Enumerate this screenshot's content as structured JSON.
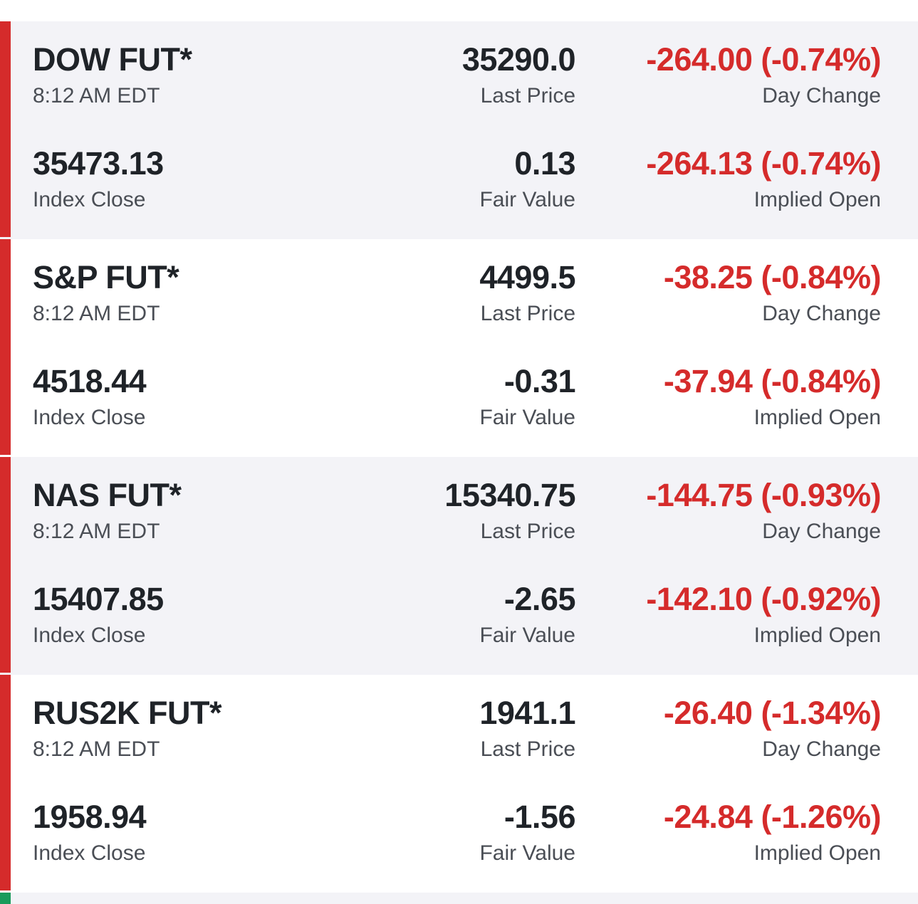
{
  "colors": {
    "negative": "#d52b2b",
    "positive_indicator": "#1a9b5b",
    "negative_indicator": "#d52b2b",
    "card_shade": "#f3f3f7"
  },
  "labels": {
    "last_price": "Last Price",
    "day_change": "Day Change",
    "index_close": "Index Close",
    "fair_value": "Fair Value",
    "implied_open": "Implied Open"
  },
  "quotes": [
    {
      "name": "DOW FUT*",
      "time": "8:12 AM EDT",
      "last_price": "35290.0",
      "day_change": "-264.00 (-0.74%)",
      "index_close": "35473.13",
      "fair_value": "0.13",
      "implied_open": "-264.13 (-0.74%)"
    },
    {
      "name": "S&P FUT*",
      "time": "8:12 AM EDT",
      "last_price": "4499.5",
      "day_change": "-38.25 (-0.84%)",
      "index_close": "4518.44",
      "fair_value": "-0.31",
      "implied_open": "-37.94 (-0.84%)"
    },
    {
      "name": "NAS FUT*",
      "time": "8:12 AM EDT",
      "last_price": "15340.75",
      "day_change": "-144.75 (-0.93%)",
      "index_close": "15407.85",
      "fair_value": "-2.65",
      "implied_open": "-142.10 (-0.92%)"
    },
    {
      "name": "RUS2K FUT*",
      "time": "8:12 AM EDT",
      "last_price": "1941.1",
      "day_change": "-26.40 (-1.34%)",
      "index_close": "1958.94",
      "fair_value": "-1.56",
      "implied_open": "-24.84 (-1.26%)"
    }
  ]
}
